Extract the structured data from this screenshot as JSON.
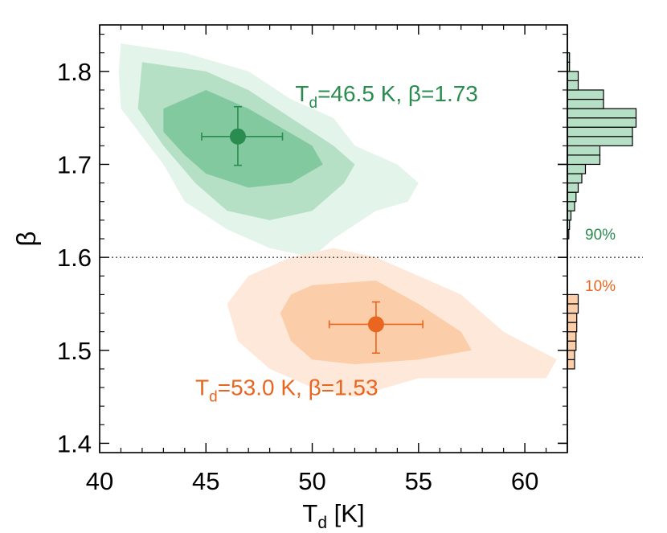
{
  "chart_data": {
    "type": "scatter",
    "xlabel": {
      "main": "T",
      "sub": "d",
      "rest": " [K]"
    },
    "ylabel": "β",
    "xlim": [
      40,
      62
    ],
    "ylim": [
      1.39,
      1.85
    ],
    "xticks": [
      40,
      45,
      50,
      55,
      60
    ],
    "xtick_labels": [
      "40",
      "45",
      "50",
      "55",
      "60"
    ],
    "yticks": [
      1.4,
      1.5,
      1.6,
      1.7,
      1.8
    ],
    "ytick_labels": [
      "1.4",
      "1.5",
      "1.6",
      "1.7",
      "1.8"
    ],
    "threshold_line": {
      "beta": 1.6,
      "style": "dotted"
    },
    "series": [
      {
        "color": "#2a8c4f",
        "fill_light": "#e3f4ea",
        "fill_mid": "#b5e0c6",
        "fill_dark": "#82c9a0",
        "point": {
          "T": 46.5,
          "beta": 1.73
        },
        "xerr": [
          44.8,
          48.6
        ],
        "yerr": [
          1.699,
          1.762
        ],
        "label": {
          "pre": "T",
          "sub": "d",
          "post": "=46.5 K, β=1.73"
        },
        "label_anchor": {
          "T": 49.2,
          "beta": 1.768
        },
        "contours": [
          [
            [
              41,
              1.83
            ],
            [
              44,
              1.82
            ],
            [
              47,
              1.8
            ],
            [
              49,
              1.77
            ],
            [
              51,
              1.75
            ],
            [
              52,
              1.72
            ],
            [
              54,
              1.7
            ],
            [
              55,
              1.68
            ],
            [
              54.5,
              1.66
            ],
            [
              53,
              1.65
            ],
            [
              51,
              1.62
            ],
            [
              50,
              1.6
            ],
            [
              48,
              1.61
            ],
            [
              46,
              1.63
            ],
            [
              44,
              1.66
            ],
            [
              43,
              1.7
            ],
            [
              41,
              1.76
            ],
            [
              40.9,
              1.8
            ]
          ],
          [
            [
              42,
              1.81
            ],
            [
              45,
              1.8
            ],
            [
              47,
              1.78
            ],
            [
              49,
              1.75
            ],
            [
              51,
              1.72
            ],
            [
              52,
              1.7
            ],
            [
              51.5,
              1.68
            ],
            [
              50,
              1.65
            ],
            [
              48,
              1.64
            ],
            [
              46,
              1.65
            ],
            [
              44.5,
              1.68
            ],
            [
              43,
              1.72
            ],
            [
              41.8,
              1.76
            ]
          ],
          [
            [
              43,
              1.76
            ],
            [
              45,
              1.78
            ],
            [
              47,
              1.76
            ],
            [
              48.5,
              1.74
            ],
            [
              50,
              1.72
            ],
            [
              50.5,
              1.7
            ],
            [
              49,
              1.68
            ],
            [
              47,
              1.675
            ],
            [
              45,
              1.69
            ],
            [
              44,
              1.71
            ],
            [
              43,
              1.735
            ]
          ]
        ],
        "hist": {
          "percent_label": "90%",
          "bins": [
            1.625,
            1.635,
            1.645,
            1.655,
            1.665,
            1.675,
            1.685,
            1.695,
            1.705,
            1.715,
            1.725,
            1.735,
            1.745,
            1.755,
            1.765,
            1.775,
            1.785,
            1.795,
            1.805,
            1.815
          ],
          "counts": [
            0.02,
            0.03,
            0.05,
            0.1,
            0.12,
            0.15,
            0.2,
            0.25,
            0.45,
            0.45,
            0.9,
            0.9,
            0.95,
            0.95,
            0.5,
            0.5,
            0.15,
            0.15,
            0.03,
            0.03
          ]
        }
      },
      {
        "color": "#e8661f",
        "fill_light": "#fde8d9",
        "fill_mid": "#fbcda8",
        "fill_dark": "",
        "point": {
          "T": 53.0,
          "beta": 1.528
        },
        "xerr": [
          50.8,
          55.2
        ],
        "yerr": [
          1.497,
          1.552
        ],
        "label": {
          "pre": "T",
          "sub": "d",
          "post": "=53.0 K, β=1.53"
        },
        "label_anchor": {
          "T": 44.5,
          "beta": 1.452
        },
        "contours": [
          [
            [
              49,
              1.6
            ],
            [
              51,
              1.61
            ],
            [
              53,
              1.6
            ],
            [
              55,
              1.58
            ],
            [
              57,
              1.56
            ],
            [
              59,
              1.52
            ],
            [
              61.5,
              1.49
            ],
            [
              61,
              1.47
            ],
            [
              58,
              1.47
            ],
            [
              55,
              1.47
            ],
            [
              52,
              1.45
            ],
            [
              50,
              1.46
            ],
            [
              48,
              1.48
            ],
            [
              46.5,
              1.51
            ],
            [
              46,
              1.55
            ],
            [
              47,
              1.58
            ]
          ],
          [
            [
              50,
              1.57
            ],
            [
              53,
              1.575
            ],
            [
              55,
              1.55
            ],
            [
              57,
              1.52
            ],
            [
              57.5,
              1.5
            ],
            [
              55,
              1.49
            ],
            [
              52,
              1.485
            ],
            [
              50,
              1.49
            ],
            [
              49,
              1.51
            ],
            [
              48.5,
              1.54
            ],
            [
              49,
              1.56
            ]
          ]
        ],
        "hist": {
          "percent_label": "10%",
          "bins": [
            1.485,
            1.495,
            1.505,
            1.515,
            1.525,
            1.535,
            1.545,
            1.555
          ],
          "counts": [
            0.1,
            0.1,
            0.12,
            0.12,
            0.13,
            0.13,
            0.15,
            0.15
          ]
        }
      }
    ]
  }
}
